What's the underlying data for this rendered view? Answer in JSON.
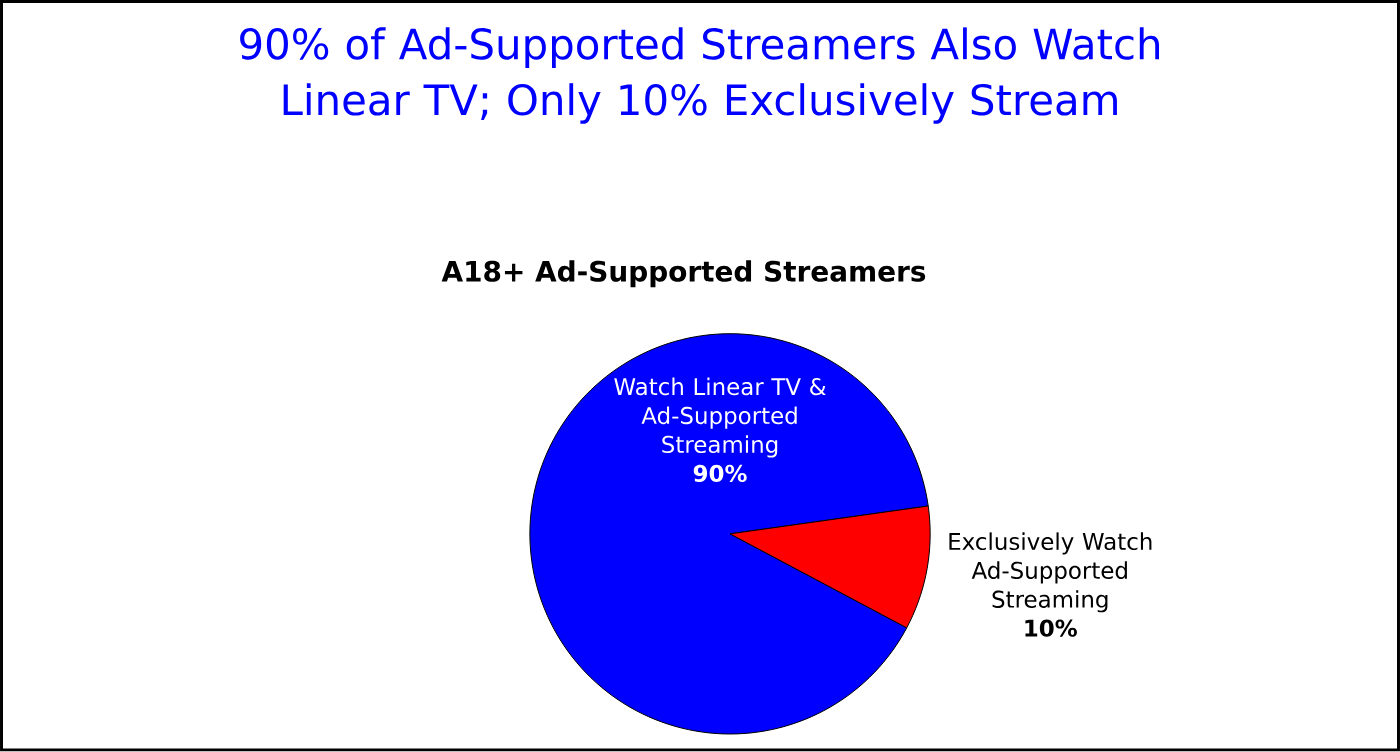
{
  "chart_data": {
    "type": "pie",
    "title": "90% of Ad-Supported Streamers Also Watch Linear TV; Only 10% Exclusively Stream",
    "subtitle": "A18+ Ad-Supported Streamers",
    "categories": [
      "Watch Linear TV & Ad-Supported Streaming",
      "Exclusively Watch Ad-Supported Streaming"
    ],
    "values": [
      90,
      10
    ],
    "colors": [
      "#0000ff",
      "#ff0000"
    ],
    "value_labels": [
      "90%",
      "10%"
    ]
  }
}
